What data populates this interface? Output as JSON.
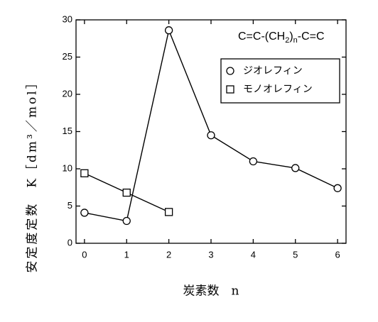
{
  "chart_data": {
    "type": "line",
    "annotation_parts": [
      "C=C-(CH",
      "2",
      ")",
      "n",
      "-C=C"
    ],
    "x_label": "炭素数　n",
    "y_label": "安定度定数　K［dm³／mol］",
    "x": [
      0,
      1,
      2,
      3,
      4,
      5,
      6
    ],
    "series": [
      {
        "name": "ジオレフィン",
        "marker": "circle",
        "color": "#000000",
        "values": [
          4.1,
          3.0,
          28.6,
          14.5,
          11.0,
          10.1,
          7.4
        ]
      },
      {
        "name": "モノオレフィン",
        "marker": "square",
        "color": "#000000",
        "values": [
          9.4,
          6.8,
          4.2,
          null,
          null,
          null,
          null
        ]
      }
    ],
    "xlim": [
      -0.2,
      6.2
    ],
    "xticks": [
      0,
      1,
      2,
      3,
      4,
      5,
      6
    ],
    "ylim": [
      0,
      30
    ],
    "yticks": [
      0,
      5,
      10,
      15,
      20,
      25,
      30
    ],
    "legend": "upper right"
  }
}
